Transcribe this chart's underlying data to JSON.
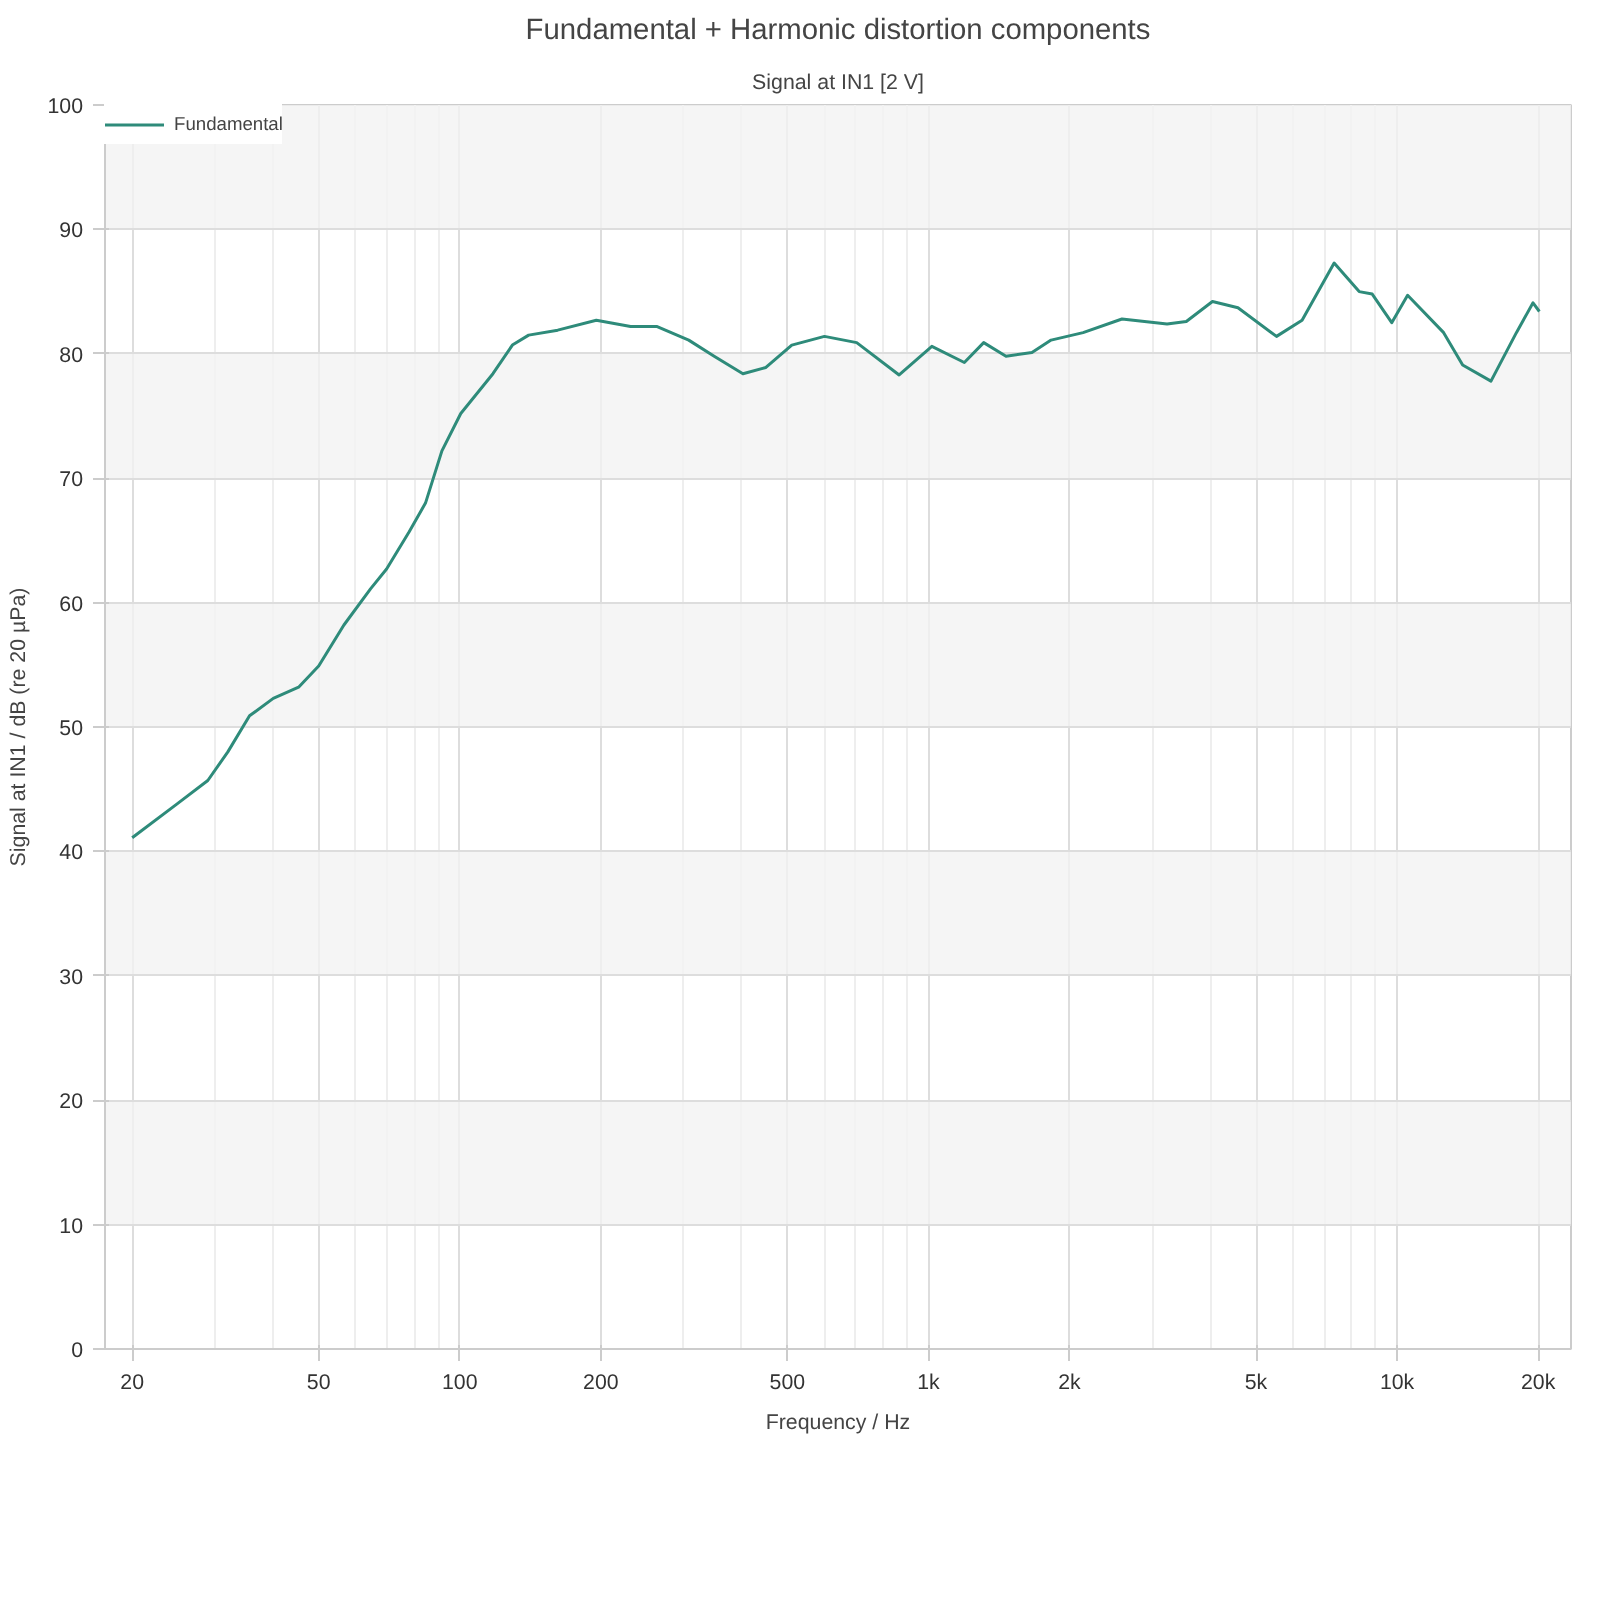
{
  "chart_data": {
    "type": "line",
    "title": "Fundamental + Harmonic distortion components",
    "subtitle": "Signal at IN1 [2 V]",
    "xlabel": "Frequency / Hz",
    "ylabel": "Signal at IN1 / dB (re 20 µPa)",
    "log": "x",
    "grid": true,
    "legend": "top left",
    "marker": "none",
    "line_style": "solid",
    "xlim": [
      17.5,
      23500
    ],
    "ylim": [
      0,
      100
    ],
    "xticks": [
      20,
      50,
      100,
      200,
      500,
      {
        "value": 1000,
        "label": "1k"
      },
      {
        "value": 2000,
        "label": "2k"
      },
      {
        "value": 5000,
        "label": "5k"
      },
      {
        "value": 10000,
        "label": "10k"
      },
      {
        "value": 20000,
        "label": "20k"
      }
    ],
    "yticks": [
      0,
      10,
      20,
      30,
      40,
      50,
      60,
      70,
      80,
      90,
      100
    ],
    "series": [
      {
        "name": "Fundamental",
        "color": "#2e8b7a",
        "x": [
          20,
          24.9,
          29.0,
          32.0,
          35.6,
          40.0,
          45.3,
          50.0,
          56.6,
          64.5,
          69.8,
          78.0,
          84.5,
          91.6,
          100.5,
          117.7,
          129.5,
          140.3,
          161.8,
          195.6,
          231.5,
          263,
          308,
          349,
          402,
          450,
          511,
          600,
          703,
          866,
          1017,
          1193,
          1312,
          1464,
          1663,
          1827,
          2138,
          2588,
          3230,
          3550,
          4037,
          4576,
          5530,
          6270,
          7340,
          8300,
          8850,
          9740,
          10530,
          12570,
          13800,
          15860,
          17970,
          19500,
          20120
        ],
        "values": [
          41.1,
          43.8,
          45.7,
          48.0,
          50.9,
          52.3,
          53.2,
          54.9,
          58.2,
          61.1,
          62.7,
          65.7,
          68.0,
          72.2,
          75.2,
          78.4,
          80.7,
          81.5,
          81.9,
          82.7,
          82.2,
          82.2,
          81.1,
          79.8,
          78.4,
          78.9,
          80.7,
          81.4,
          80.9,
          78.3,
          80.6,
          79.3,
          80.9,
          79.8,
          80.1,
          81.1,
          81.7,
          82.8,
          82.4,
          82.6,
          84.2,
          83.7,
          81.4,
          82.7,
          87.3,
          85.0,
          84.8,
          82.5,
          84.7,
          81.7,
          79.1,
          77.8,
          81.7,
          84.1,
          83.4
        ]
      }
    ]
  }
}
